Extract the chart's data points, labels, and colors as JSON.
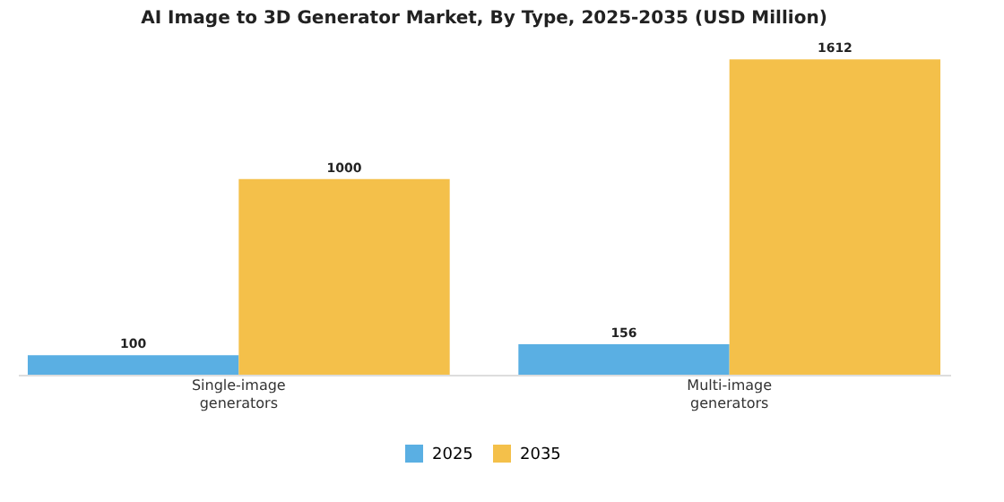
{
  "chart_data": {
    "type": "bar",
    "title": "AI Image to 3D Generator Market, By Type, 2025-2035 (USD Million)",
    "categories": [
      "Single-image generators",
      "Multi-image generators"
    ],
    "series": [
      {
        "name": "2025",
        "color": "#5aafe3",
        "values": [
          100,
          156
        ]
      },
      {
        "name": "2035",
        "color": "#f4c04a",
        "values": [
          1000,
          1612
        ]
      }
    ],
    "data_labels": true,
    "legend": "bottom"
  }
}
